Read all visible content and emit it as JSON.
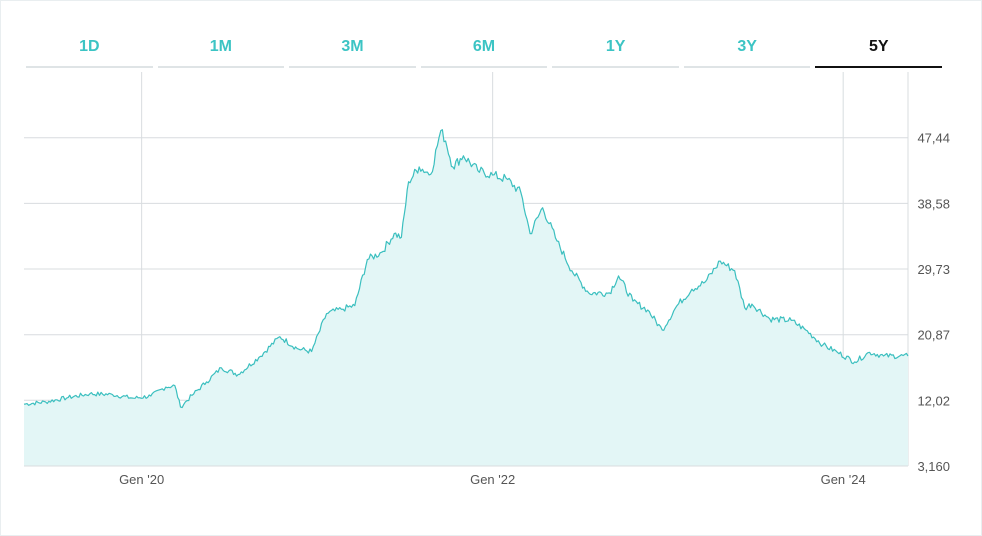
{
  "tabs": [
    "1D",
    "1M",
    "3M",
    "6M",
    "1Y",
    "3Y",
    "5Y"
  ],
  "active_tab": "5Y",
  "colors": {
    "line": "#3bbfbf",
    "fill": "#e3f6f6",
    "tab": "#3cc4c4",
    "active_tab": "#111111",
    "grid": "#d8dcdf"
  },
  "chart_data": {
    "type": "area",
    "y_ticks": [
      "47,44",
      "38,58",
      "29,73",
      "20,87",
      "12,02",
      "3,160"
    ],
    "y_tick_values": [
      47.44,
      38.58,
      29.73,
      20.87,
      12.02,
      3.16
    ],
    "ylim": [
      3.16,
      56.3
    ],
    "x_ticks": [
      {
        "label": "Gen '20",
        "x": "2020-01-01"
      },
      {
        "label": "Gen '22",
        "x": "2022-01-01"
      },
      {
        "label": "Gen '24",
        "x": "2024-01-01"
      }
    ],
    "xlim": [
      "2019-05-01",
      "2024-05-15"
    ],
    "grid": true,
    "series": [
      {
        "points": [
          [
            "2019-05-01",
            11.5
          ],
          [
            "2019-06-15",
            11.8
          ],
          [
            "2019-08-01",
            12.4
          ],
          [
            "2019-09-15",
            12.9
          ],
          [
            "2019-11-01",
            12.8
          ],
          [
            "2019-12-15",
            12.3
          ],
          [
            "2020-01-20",
            12.6
          ],
          [
            "2020-02-20",
            13.8
          ],
          [
            "2020-03-10",
            14.0
          ],
          [
            "2020-03-22",
            11.1
          ],
          [
            "2020-04-15",
            12.7
          ],
          [
            "2020-05-15",
            14.5
          ],
          [
            "2020-06-15",
            16.4
          ],
          [
            "2020-07-20",
            15.5
          ],
          [
            "2020-09-01",
            17.8
          ],
          [
            "2020-10-15",
            20.6
          ],
          [
            "2020-11-20",
            19.0
          ],
          [
            "2020-12-20",
            18.6
          ],
          [
            "2021-01-20",
            23.7
          ],
          [
            "2021-02-20",
            24.3
          ],
          [
            "2021-03-20",
            24.8
          ],
          [
            "2021-04-15",
            31.0
          ],
          [
            "2021-05-15",
            32.0
          ],
          [
            "2021-06-10",
            34.5
          ],
          [
            "2021-06-25",
            34.0
          ],
          [
            "2021-07-10",
            41.5
          ],
          [
            "2021-08-01",
            43.5
          ],
          [
            "2021-08-25",
            42.5
          ],
          [
            "2021-09-15",
            48.4
          ],
          [
            "2021-09-25",
            47.0
          ],
          [
            "2021-10-10",
            43.5
          ],
          [
            "2021-11-01",
            45.0
          ],
          [
            "2021-12-01",
            43.0
          ],
          [
            "2022-01-01",
            42.4
          ],
          [
            "2022-02-01",
            41.8
          ],
          [
            "2022-03-01",
            40.0
          ],
          [
            "2022-03-20",
            34.5
          ],
          [
            "2022-04-15",
            38.0
          ],
          [
            "2022-05-15",
            33.5
          ],
          [
            "2022-06-15",
            29.5
          ],
          [
            "2022-07-20",
            26.5
          ],
          [
            "2022-09-01",
            26.5
          ],
          [
            "2022-09-20",
            28.8
          ],
          [
            "2022-10-20",
            25.4
          ],
          [
            "2022-11-20",
            24.2
          ],
          [
            "2022-12-20",
            21.5
          ],
          [
            "2023-01-20",
            24.8
          ],
          [
            "2023-02-20",
            27.0
          ],
          [
            "2023-03-20",
            28.0
          ],
          [
            "2023-04-20",
            30.8
          ],
          [
            "2023-05-20",
            29.5
          ],
          [
            "2023-06-10",
            24.5
          ],
          [
            "2023-06-25",
            25.0
          ],
          [
            "2023-08-01",
            23.0
          ],
          [
            "2023-09-15",
            22.8
          ],
          [
            "2023-10-15",
            21.5
          ],
          [
            "2023-11-20",
            19.5
          ],
          [
            "2023-12-20",
            18.5
          ],
          [
            "2024-01-25",
            17.2
          ],
          [
            "2024-02-25",
            18.5
          ],
          [
            "2024-03-25",
            18.0
          ],
          [
            "2024-05-15",
            18.0
          ]
        ]
      }
    ]
  }
}
